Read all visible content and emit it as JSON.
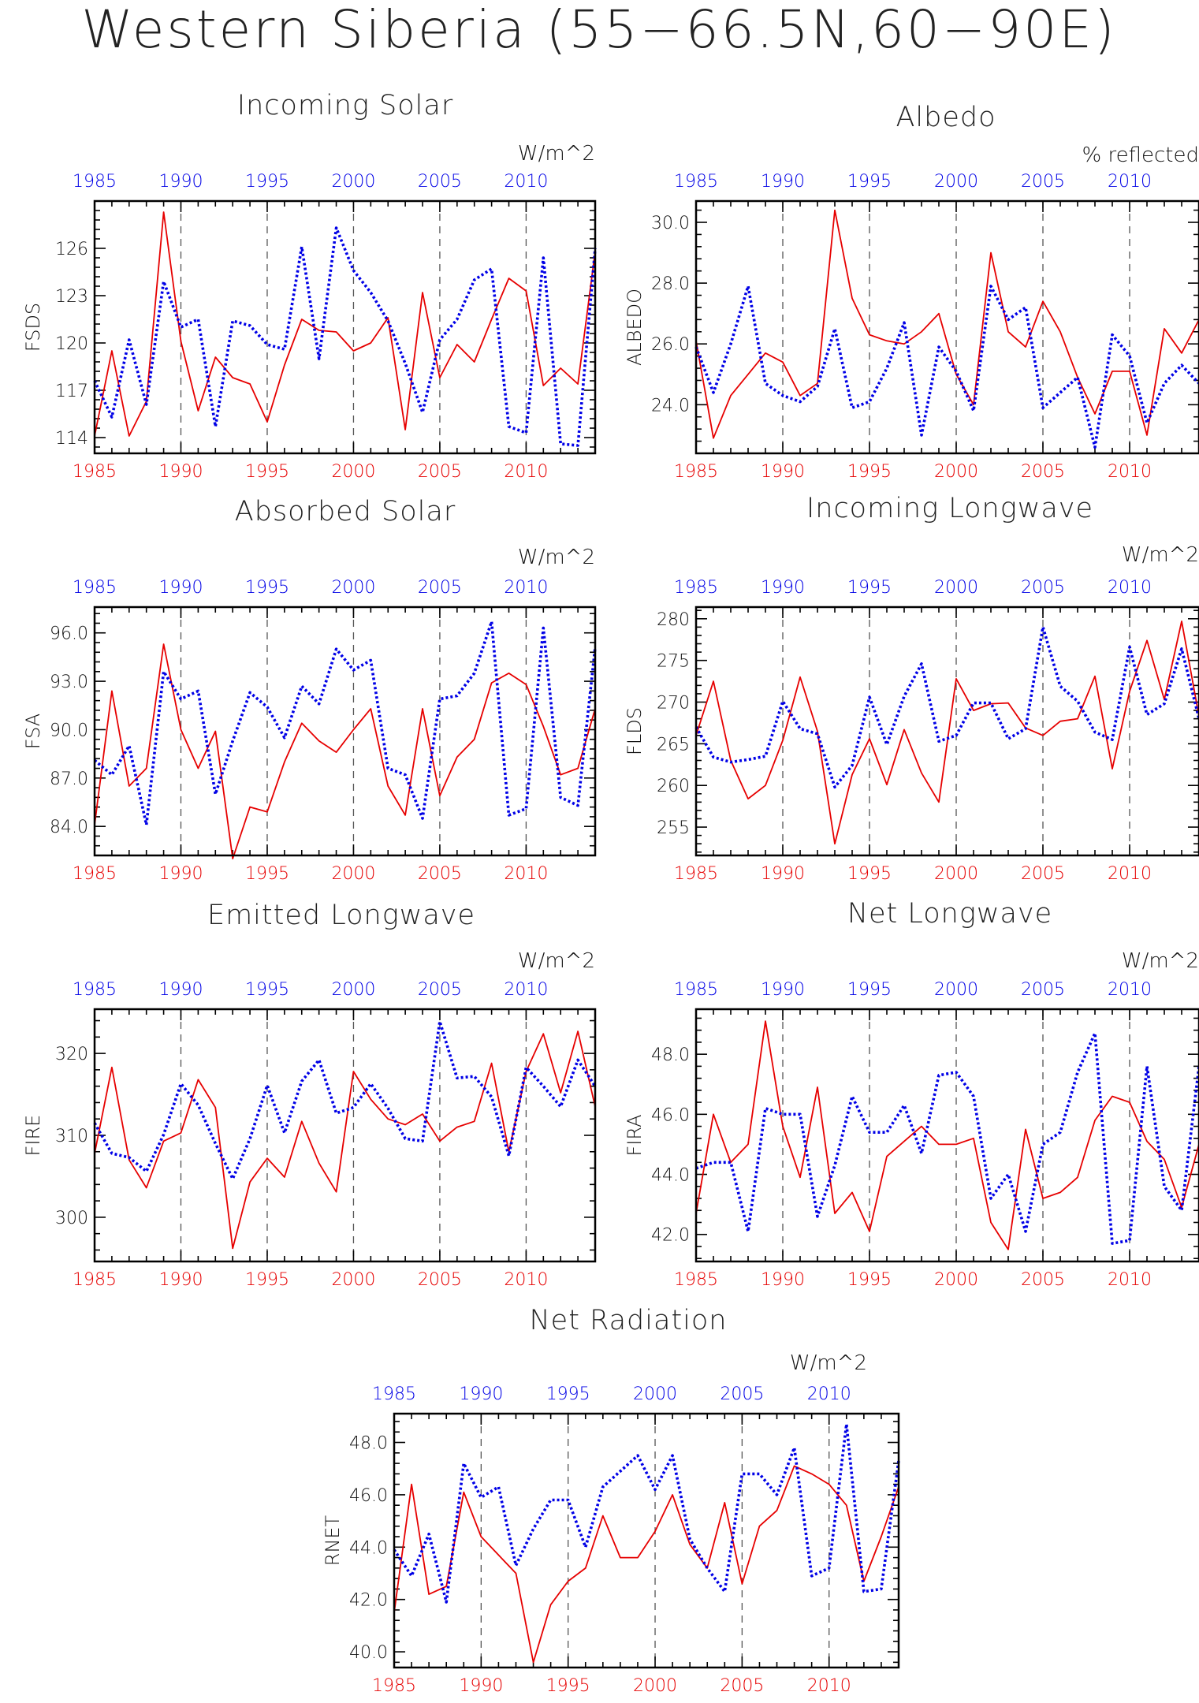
{
  "title": "Western Siberia (55−66.5N,60−90E)",
  "colors": {
    "series_a": "#e60000",
    "series_b": "#0000e6",
    "axis": "#000000",
    "refline": "#555555"
  },
  "chart_data": [
    {
      "type": "line",
      "title": "Incoming Solar",
      "units": "W/m^2",
      "ylabel": "FSDS",
      "x_ticks": [
        "1985",
        "1990",
        "1995",
        "2000",
        "2005",
        "2010"
      ],
      "y_ticks": [
        "114",
        "117",
        "120",
        "123",
        "126"
      ],
      "ylim": [
        113,
        129
      ],
      "xlim": [
        1985,
        2014
      ],
      "reference_lines_x": [
        1990,
        1995,
        2000,
        2005,
        2010
      ],
      "x": [
        1985,
        1986,
        1987,
        1988,
        1989,
        1990,
        1991,
        1992,
        1993,
        1994,
        1995,
        1996,
        1997,
        1998,
        1999,
        2000,
        2001,
        2002,
        2003,
        2004,
        2005,
        2006,
        2007,
        2008,
        2009,
        2010,
        2011,
        2012,
        2013,
        2014
      ],
      "series": [
        {
          "values": [
            114.1,
            119.5,
            114.1,
            116.3,
            128.3,
            120.1,
            115.7,
            119.1,
            117.8,
            117.4,
            115.0,
            118.6,
            121.5,
            120.8,
            120.7,
            119.5,
            120.0,
            121.6,
            114.5,
            123.2,
            117.8,
            119.9,
            118.8,
            121.5,
            124.1,
            123.3,
            117.3,
            118.4,
            117.4,
            125.8
          ]
        },
        {
          "values": [
            117.6,
            115.3,
            120.2,
            116.1,
            123.9,
            121.0,
            121.5,
            114.7,
            121.4,
            121.1,
            119.9,
            119.6,
            126.1,
            119.0,
            127.3,
            124.6,
            123.2,
            121.4,
            118.7,
            115.6,
            120.2,
            121.5,
            124.0,
            124.7,
            114.7,
            114.3,
            125.4,
            113.6,
            113.5,
            126.0
          ]
        }
      ]
    },
    {
      "type": "line",
      "title": "Albedo",
      "units": "% reflected",
      "ylabel": "ALBEDO",
      "x_ticks": [
        "1985",
        "1990",
        "1995",
        "2000",
        "2005",
        "2010"
      ],
      "y_ticks": [
        "24.0",
        "26.0",
        "28.0",
        "30.0"
      ],
      "ylim": [
        22.4,
        30.7
      ],
      "xlim": [
        1985,
        2014
      ],
      "reference_lines_x": [
        1990,
        1995,
        2000,
        2005,
        2010
      ],
      "x": [
        1985,
        1986,
        1987,
        1988,
        1989,
        1990,
        1991,
        1992,
        1993,
        1994,
        1995,
        1996,
        1997,
        1998,
        1999,
        2000,
        2001,
        2002,
        2003,
        2004,
        2005,
        2006,
        2007,
        2008,
        2009,
        2010,
        2011,
        2012,
        2013,
        2014
      ],
      "series": [
        {
          "values": [
            26.1,
            22.9,
            24.3,
            25.0,
            25.7,
            25.4,
            24.3,
            24.7,
            30.4,
            27.5,
            26.3,
            26.1,
            26.0,
            26.4,
            27.0,
            25.0,
            24.0,
            29.0,
            26.4,
            25.9,
            27.4,
            26.4,
            24.9,
            23.7,
            25.1,
            25.1,
            23.0,
            26.5,
            25.7,
            26.8
          ]
        },
        {
          "values": [
            25.9,
            24.4,
            26.0,
            27.9,
            24.7,
            24.3,
            24.1,
            24.6,
            26.5,
            23.9,
            24.1,
            25.2,
            26.7,
            23.0,
            25.9,
            25.1,
            23.8,
            27.9,
            26.8,
            27.2,
            23.9,
            24.4,
            24.9,
            22.6,
            26.3,
            25.6,
            23.4,
            24.7,
            25.3,
            24.7
          ]
        }
      ]
    },
    {
      "type": "line",
      "title": "Absorbed Solar",
      "units": "W/m^2",
      "ylabel": "FSA",
      "x_ticks": [
        "1985",
        "1990",
        "1995",
        "2000",
        "2005",
        "2010"
      ],
      "y_ticks": [
        "84.0",
        "87.0",
        "90.0",
        "93.0",
        "96.0"
      ],
      "ylim": [
        82.2,
        97.6
      ],
      "xlim": [
        1985,
        2014
      ],
      "reference_lines_x": [
        1990,
        1995,
        2000,
        2005,
        2010
      ],
      "x": [
        1985,
        1986,
        1987,
        1988,
        1989,
        1990,
        1991,
        1992,
        1993,
        1994,
        1995,
        1996,
        1997,
        1998,
        1999,
        2000,
        2001,
        2002,
        2003,
        2004,
        2005,
        2006,
        2007,
        2008,
        2009,
        2010,
        2011,
        2012,
        2013,
        2014
      ],
      "series": [
        {
          "values": [
            84.1,
            92.4,
            86.5,
            87.6,
            95.3,
            90.0,
            87.6,
            89.9,
            82.0,
            85.2,
            84.9,
            88.0,
            90.4,
            89.3,
            88.6,
            90.0,
            91.3,
            86.5,
            84.7,
            91.3,
            85.9,
            88.3,
            89.4,
            92.9,
            93.5,
            92.8,
            90.2,
            87.2,
            87.6,
            91.3
          ]
        },
        {
          "values": [
            88.1,
            87.2,
            89.0,
            84.1,
            93.6,
            91.9,
            92.4,
            86.0,
            89.3,
            92.3,
            91.4,
            89.5,
            92.7,
            91.6,
            95.0,
            93.7,
            94.3,
            87.6,
            87.2,
            84.5,
            91.9,
            92.1,
            93.5,
            96.7,
            84.7,
            85.1,
            96.3,
            85.8,
            85.3,
            95.1
          ]
        }
      ]
    },
    {
      "type": "line",
      "title": "Incoming Longwave",
      "units": "W/m^2",
      "ylabel": "FLDS",
      "x_ticks": [
        "1985",
        "1990",
        "1995",
        "2000",
        "2005",
        "2010"
      ],
      "y_ticks": [
        "255",
        "260",
        "265",
        "270",
        "275",
        "280"
      ],
      "ylim": [
        251.6,
        281.4
      ],
      "xlim": [
        1985,
        2014
      ],
      "reference_lines_x": [
        1990,
        1995,
        2000,
        2005,
        2010
      ],
      "x": [
        1985,
        1986,
        1987,
        1988,
        1989,
        1990,
        1991,
        1992,
        1993,
        1994,
        1995,
        1996,
        1997,
        1998,
        1999,
        2000,
        2001,
        2002,
        2003,
        2004,
        2005,
        2006,
        2007,
        2008,
        2009,
        2010,
        2011,
        2012,
        2013,
        2014
      ],
      "series": [
        {
          "values": [
            266.0,
            272.5,
            263.0,
            258.4,
            260.0,
            265.4,
            273.0,
            266.5,
            253.0,
            261.3,
            265.6,
            260.1,
            266.7,
            261.5,
            258.0,
            272.8,
            269.0,
            269.8,
            269.9,
            266.9,
            266.0,
            267.7,
            268.0,
            273.1,
            262.0,
            271.3,
            277.4,
            270.3,
            279.7,
            268.3
          ]
        },
        {
          "values": [
            267.0,
            263.4,
            262.8,
            263.1,
            263.5,
            270.1,
            266.8,
            266.2,
            259.8,
            262.4,
            270.6,
            264.9,
            270.7,
            274.6,
            265.3,
            266.0,
            269.9,
            269.9,
            265.6,
            266.8,
            279.0,
            271.9,
            270.1,
            266.4,
            265.5,
            276.6,
            268.5,
            269.8,
            276.4,
            268.0
          ]
        }
      ]
    },
    {
      "type": "line",
      "title": "Emitted Longwave",
      "units": "W/m^2",
      "ylabel": "FIRE",
      "x_ticks": [
        "1985",
        "1990",
        "1995",
        "2000",
        "2005",
        "2010"
      ],
      "y_ticks": [
        "300",
        "310",
        "320"
      ],
      "ylim": [
        294.6,
        325.4
      ],
      "xlim": [
        1985,
        2014
      ],
      "reference_lines_x": [
        1990,
        1995,
        2000,
        2005,
        2010
      ],
      "x": [
        1985,
        1986,
        1987,
        1988,
        1989,
        1990,
        1991,
        1992,
        1993,
        1994,
        1995,
        1996,
        1997,
        1998,
        1999,
        2000,
        2001,
        2002,
        2003,
        2004,
        2005,
        2006,
        2007,
        2008,
        2009,
        2010,
        2011,
        2012,
        2013,
        2014
      ],
      "series": [
        {
          "values": [
            307.8,
            318.3,
            307.0,
            303.6,
            309.3,
            310.3,
            316.8,
            313.4,
            296.2,
            304.3,
            307.2,
            304.9,
            311.7,
            306.6,
            303.1,
            317.8,
            314.4,
            312.0,
            311.3,
            312.6,
            309.3,
            311.0,
            311.7,
            318.8,
            308.0,
            317.8,
            322.4,
            315.2,
            322.7,
            313.5
          ]
        },
        {
          "values": [
            311.5,
            307.8,
            307.3,
            305.6,
            310.1,
            316.3,
            313.7,
            309.0,
            304.7,
            309.6,
            316.1,
            310.3,
            316.6,
            319.2,
            312.7,
            313.4,
            316.3,
            313.3,
            309.6,
            309.3,
            323.9,
            317.0,
            317.2,
            314.7,
            307.5,
            318.3,
            316.0,
            313.5,
            319.2,
            316.0
          ]
        }
      ]
    },
    {
      "type": "line",
      "title": "Net Longwave",
      "units": "W/m^2",
      "ylabel": "FIRA",
      "x_ticks": [
        "1985",
        "1990",
        "1995",
        "2000",
        "2005",
        "2010"
      ],
      "y_ticks": [
        "42.0",
        "44.0",
        "46.0",
        "48.0"
      ],
      "ylim": [
        41.1,
        49.5
      ],
      "xlim": [
        1985,
        2014
      ],
      "reference_lines_x": [
        1990,
        1995,
        2000,
        2005,
        2010
      ],
      "x": [
        1985,
        1986,
        1987,
        1988,
        1989,
        1990,
        1991,
        1992,
        1993,
        1994,
        1995,
        1996,
        1997,
        1998,
        1999,
        2000,
        2001,
        2002,
        2003,
        2004,
        2005,
        2006,
        2007,
        2008,
        2009,
        2010,
        2011,
        2012,
        2013,
        2014
      ],
      "series": [
        {
          "values": [
            42.7,
            46.0,
            44.4,
            45.0,
            49.1,
            45.6,
            43.9,
            46.9,
            42.7,
            43.4,
            42.1,
            44.6,
            45.1,
            45.6,
            45.0,
            45.0,
            45.2,
            42.4,
            41.5,
            45.5,
            43.2,
            43.4,
            43.9,
            45.8,
            46.6,
            46.4,
            45.1,
            44.5,
            42.9,
            45.0
          ]
        },
        {
          "values": [
            44.2,
            44.4,
            44.4,
            42.1,
            46.2,
            46.0,
            46.0,
            42.6,
            44.3,
            46.6,
            45.4,
            45.4,
            46.3,
            44.7,
            47.3,
            47.4,
            46.6,
            43.2,
            44.0,
            42.1,
            45.0,
            45.4,
            47.4,
            48.7,
            41.7,
            41.8,
            47.6,
            43.6,
            42.8,
            47.6
          ]
        }
      ]
    },
    {
      "type": "line",
      "title": "Net Radiation",
      "units": "W/m^2",
      "ylabel": "RNET",
      "x_ticks": [
        "1985",
        "1990",
        "1995",
        "2000",
        "2005",
        "2010"
      ],
      "y_ticks": [
        "40.0",
        "42.0",
        "44.0",
        "46.0",
        "48.0"
      ],
      "ylim": [
        39.4,
        49.1
      ],
      "xlim": [
        1985,
        2014
      ],
      "reference_lines_x": [
        1990,
        1995,
        2000,
        2005,
        2010
      ],
      "x": [
        1985,
        1986,
        1987,
        1988,
        1989,
        1990,
        1991,
        1992,
        1993,
        1994,
        1995,
        1996,
        1997,
        1998,
        1999,
        2000,
        2001,
        2002,
        2003,
        2004,
        2005,
        2006,
        2007,
        2008,
        2009,
        2010,
        2011,
        2012,
        2013,
        2014
      ],
      "series": [
        {
          "values": [
            41.5,
            46.4,
            42.2,
            42.5,
            46.1,
            44.4,
            43.7,
            43.0,
            39.6,
            41.8,
            42.7,
            43.2,
            45.2,
            43.6,
            43.6,
            44.6,
            46.0,
            44.1,
            43.2,
            45.7,
            42.6,
            44.8,
            45.4,
            47.1,
            46.8,
            46.4,
            45.6,
            42.7,
            44.4,
            46.3
          ]
        },
        {
          "values": [
            43.9,
            42.9,
            44.5,
            41.9,
            47.2,
            45.9,
            46.3,
            43.3,
            44.7,
            45.8,
            45.8,
            44.0,
            46.3,
            46.9,
            47.5,
            46.2,
            47.5,
            44.3,
            43.2,
            42.3,
            46.8,
            46.8,
            46.0,
            47.8,
            42.9,
            43.2,
            48.7,
            42.3,
            42.4,
            47.3
          ]
        }
      ]
    }
  ]
}
